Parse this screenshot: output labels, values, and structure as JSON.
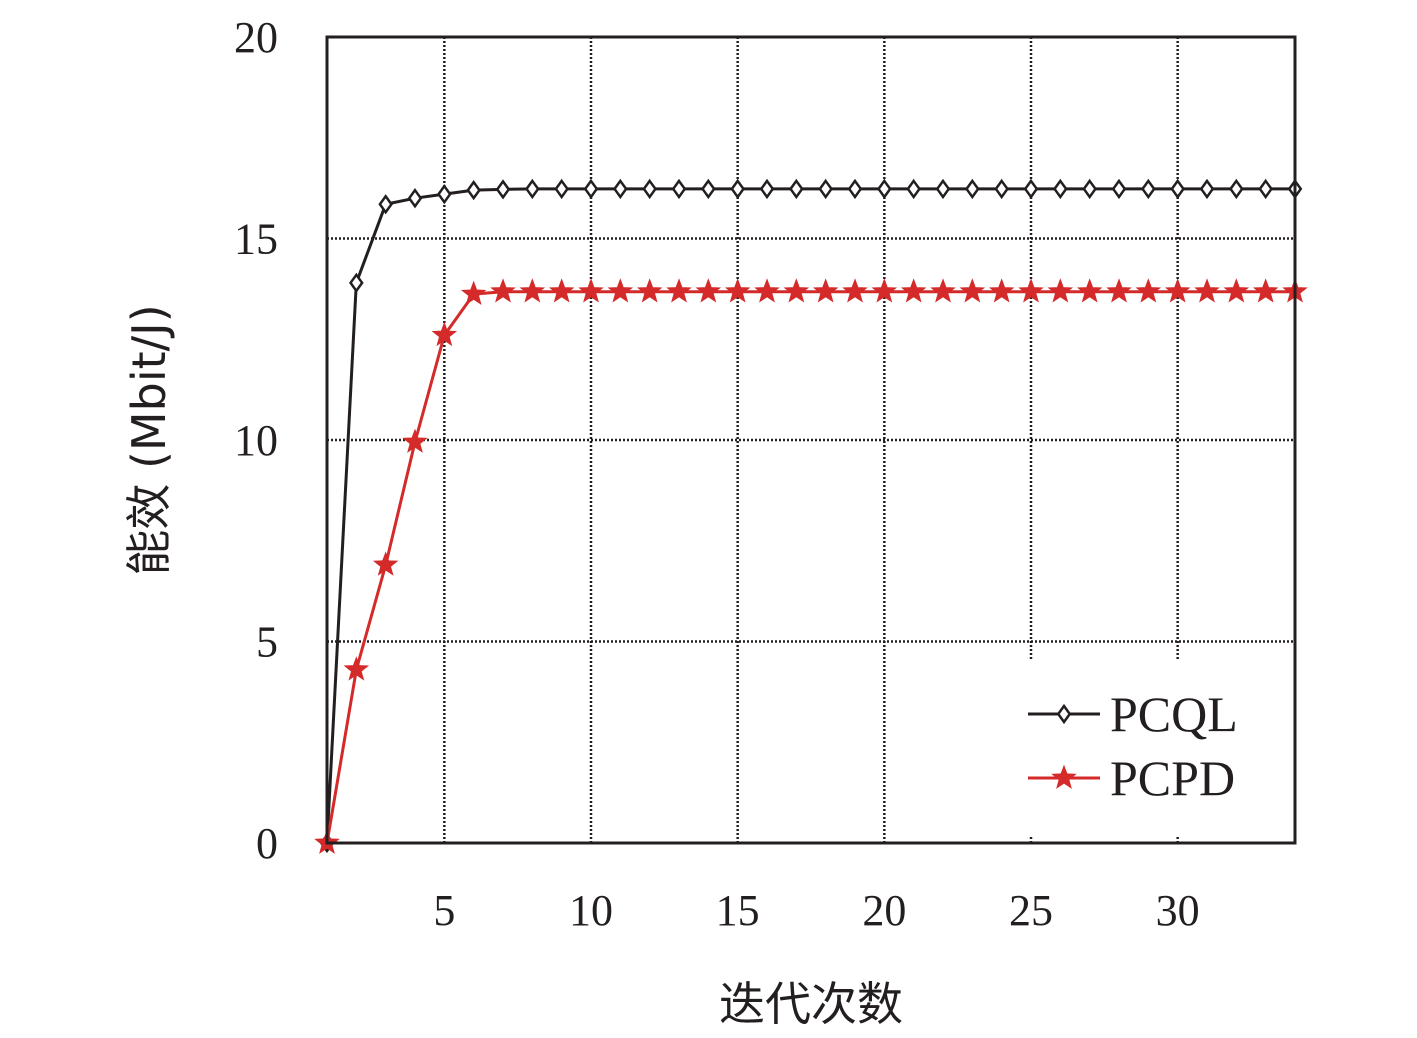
{
  "chart_data": {
    "type": "line",
    "title": "",
    "xlabel": "迭代次数",
    "ylabel": "能效 (Mbit/J)",
    "xlim": [
      1,
      34
    ],
    "ylim": [
      0,
      20
    ],
    "x_ticks": [
      5,
      10,
      15,
      20,
      25,
      30
    ],
    "y_ticks": [
      0,
      5,
      10,
      15,
      20
    ],
    "grid": true,
    "legend_position": "bottom-right",
    "x": [
      1,
      2,
      3,
      4,
      5,
      6,
      7,
      8,
      9,
      10,
      11,
      12,
      13,
      14,
      15,
      16,
      17,
      18,
      19,
      20,
      21,
      22,
      23,
      24,
      25,
      26,
      27,
      28,
      29,
      30,
      31,
      32,
      33,
      34
    ],
    "series": [
      {
        "name": "PCQL",
        "color": "#231f20",
        "marker": "diamond-open",
        "values": [
          0,
          13.9,
          15.85,
          16.0,
          16.1,
          16.2,
          16.22,
          16.23,
          16.23,
          16.23,
          16.23,
          16.23,
          16.23,
          16.23,
          16.23,
          16.23,
          16.23,
          16.23,
          16.23,
          16.23,
          16.23,
          16.23,
          16.23,
          16.23,
          16.23,
          16.23,
          16.23,
          16.23,
          16.23,
          16.23,
          16.23,
          16.23,
          16.23,
          16.23
        ]
      },
      {
        "name": "PCPD",
        "color": "#d42a2a",
        "marker": "star-filled",
        "values": [
          0,
          4.3,
          6.9,
          9.95,
          12.6,
          13.62,
          13.68,
          13.68,
          13.68,
          13.68,
          13.68,
          13.68,
          13.68,
          13.68,
          13.68,
          13.68,
          13.68,
          13.68,
          13.68,
          13.68,
          13.68,
          13.68,
          13.68,
          13.68,
          13.68,
          13.68,
          13.68,
          13.68,
          13.68,
          13.68,
          13.68,
          13.68,
          13.68,
          13.68
        ]
      }
    ]
  }
}
